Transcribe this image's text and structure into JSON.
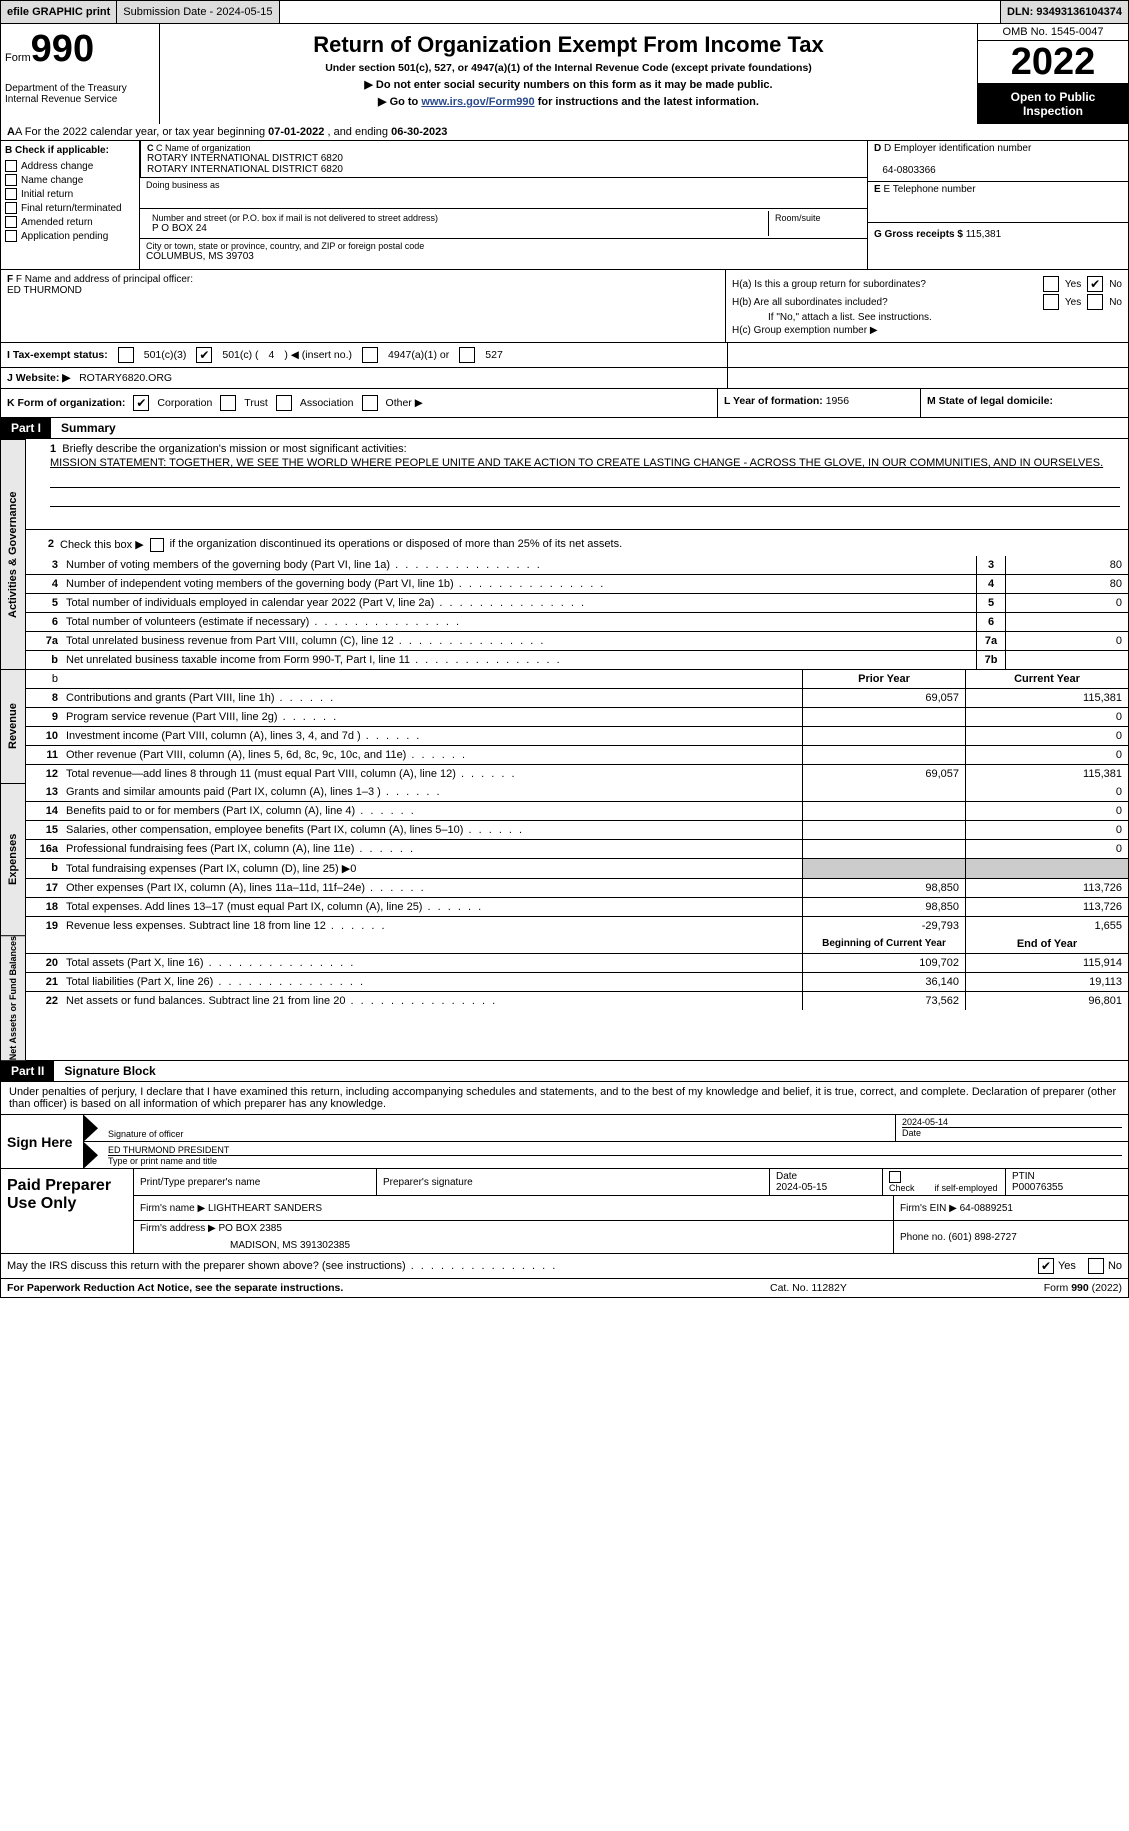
{
  "topbar": {
    "efile": "efile GRAPHIC print",
    "submission": "Submission Date - 2024-05-15",
    "dln": "DLN: 93493136104374"
  },
  "header": {
    "form_label": "Form",
    "form_number": "990",
    "title": "Return of Organization Exempt From Income Tax",
    "under": "Under section 501(c), 527, or 4947(a)(1) of the Internal Revenue Code (except private foundations)",
    "ssn": "▶ Do not enter social security numbers on this form as it may be made public.",
    "goto_pre": "▶ Go to ",
    "goto_link": "www.irs.gov/Form990",
    "goto_post": " for instructions and the latest information.",
    "dept": "Department of the Treasury\nInternal Revenue Service",
    "omb": "OMB No. 1545-0047",
    "year": "2022",
    "inspection": "Open to Public Inspection"
  },
  "row_a": {
    "pre": "A For the 2022 calendar year, or tax year beginning ",
    "begin": "07-01-2022",
    "mid": " , and ending ",
    "end": "06-30-2023"
  },
  "section_b": {
    "label": "B Check if applicable:",
    "items": [
      "Address change",
      "Name change",
      "Initial return",
      "Final return/terminated",
      "Amended return",
      "Application pending"
    ]
  },
  "section_c": {
    "name_lbl": "C Name of organization",
    "name1": "ROTARY INTERNATIONAL DISTRICT 6820",
    "name2": "ROTARY INTERNATIONAL DISTRICT 6820",
    "dba_lbl": "Doing business as",
    "street_lbl": "Number and street (or P.O. box if mail is not delivered to street address)",
    "room_lbl": "Room/suite",
    "street": "P O BOX 24",
    "city_lbl": "City or town, state or province, country, and ZIP or foreign postal code",
    "city": "COLUMBUS, MS  39703"
  },
  "section_de": {
    "ein_lbl": "D Employer identification number",
    "ein": "64-0803366",
    "phone_lbl": "E Telephone number",
    "gross_lbl": "G Gross receipts $",
    "gross": "115,381"
  },
  "section_f": {
    "lbl": "F Name and address of principal officer:",
    "name": "ED THURMOND"
  },
  "section_h": {
    "a": "H(a)  Is this a group return for subordinates?",
    "b": "H(b)  Are all subordinates included?",
    "ifno": "If \"No,\" attach a list. See instructions.",
    "c": "H(c)  Group exemption number ▶",
    "yes": "Yes",
    "no": "No"
  },
  "row_i": {
    "lbl": "I   Tax-exempt status:",
    "o1": "501(c)(3)",
    "o2_a": "501(c) (",
    "o2_n": "4",
    "o2_b": ") ◀ (insert no.)",
    "o3": "4947(a)(1) or",
    "o4": "527"
  },
  "row_j": {
    "lbl": "J   Website: ▶",
    "val": "ROTARY6820.ORG"
  },
  "row_k": {
    "lbl": "K Form of organization:",
    "o1": "Corporation",
    "o2": "Trust",
    "o3": "Association",
    "o4": "Other ▶",
    "l_lbl": "L Year of formation:",
    "l_val": "1956",
    "m_lbl": "M State of legal domicile:",
    "m_val": ""
  },
  "partI": {
    "tag": "Part I",
    "title": "Summary",
    "sideA": "Activities & Governance",
    "sideR": "Revenue",
    "sideE": "Expenses",
    "sideN": "Net Assets or Fund Balances",
    "l1_lbl": "Briefly describe the organization's mission or most significant activities:",
    "l1_val": "MISSION STATEMENT: TOGETHER, WE SEE THE WORLD WHERE PEOPLE UNITE AND TAKE ACTION TO CREATE LASTING CHANGE - ACROSS THE GLOVE, IN OUR COMMUNITIES, AND IN OURSELVES.",
    "l2_pre": "Check this box ▶",
    "l2_post": "if the organization discontinued its operations or disposed of more than 25% of its net assets.",
    "lines_act": [
      {
        "n": "3",
        "d": "Number of voting members of the governing body (Part VI, line 1a)",
        "box": "3",
        "v": "80"
      },
      {
        "n": "4",
        "d": "Number of independent voting members of the governing body (Part VI, line 1b)",
        "box": "4",
        "v": "80"
      },
      {
        "n": "5",
        "d": "Total number of individuals employed in calendar year 2022 (Part V, line 2a)",
        "box": "5",
        "v": "0"
      },
      {
        "n": "6",
        "d": "Total number of volunteers (estimate if necessary)",
        "box": "6",
        "v": ""
      },
      {
        "n": "7a",
        "d": "Total unrelated business revenue from Part VIII, column (C), line 12",
        "box": "7a",
        "v": "0"
      },
      {
        "n": "b",
        "d": "Net unrelated business taxable income from Form 990-T, Part I, line 11",
        "box": "7b",
        "v": ""
      }
    ],
    "hdr": {
      "prior": "Prior Year",
      "curr": "Current Year"
    },
    "lines_rev": [
      {
        "n": "8",
        "d": "Contributions and grants (Part VIII, line 1h)",
        "p": "69,057",
        "c": "115,381"
      },
      {
        "n": "9",
        "d": "Program service revenue (Part VIII, line 2g)",
        "p": "",
        "c": "0"
      },
      {
        "n": "10",
        "d": "Investment income (Part VIII, column (A), lines 3, 4, and 7d )",
        "p": "",
        "c": "0"
      },
      {
        "n": "11",
        "d": "Other revenue (Part VIII, column (A), lines 5, 6d, 8c, 9c, 10c, and 11e)",
        "p": "",
        "c": "0"
      },
      {
        "n": "12",
        "d": "Total revenue—add lines 8 through 11 (must equal Part VIII, column (A), line 12)",
        "p": "69,057",
        "c": "115,381"
      }
    ],
    "lines_exp": [
      {
        "n": "13",
        "d": "Grants and similar amounts paid (Part IX, column (A), lines 1–3 )",
        "p": "",
        "c": "0"
      },
      {
        "n": "14",
        "d": "Benefits paid to or for members (Part IX, column (A), line 4)",
        "p": "",
        "c": "0"
      },
      {
        "n": "15",
        "d": "Salaries, other compensation, employee benefits (Part IX, column (A), lines 5–10)",
        "p": "",
        "c": "0"
      },
      {
        "n": "16a",
        "d": "Professional fundraising fees (Part IX, column (A), line 11e)",
        "p": "",
        "c": "0"
      },
      {
        "n": "b",
        "d": "Total fundraising expenses (Part IX, column (D), line 25) ▶0",
        "p": "GRAY",
        "c": "GRAY"
      },
      {
        "n": "17",
        "d": "Other expenses (Part IX, column (A), lines 11a–11d, 11f–24e)",
        "p": "98,850",
        "c": "113,726"
      },
      {
        "n": "18",
        "d": "Total expenses. Add lines 13–17 (must equal Part IX, column (A), line 25)",
        "p": "98,850",
        "c": "113,726"
      },
      {
        "n": "19",
        "d": "Revenue less expenses. Subtract line 18 from line 12",
        "p": "-29,793",
        "c": "1,655"
      }
    ],
    "hdr2": {
      "prior": "Beginning of Current Year",
      "curr": "End of Year"
    },
    "lines_net": [
      {
        "n": "20",
        "d": "Total assets (Part X, line 16)",
        "p": "109,702",
        "c": "115,914"
      },
      {
        "n": "21",
        "d": "Total liabilities (Part X, line 26)",
        "p": "36,140",
        "c": "19,113"
      },
      {
        "n": "22",
        "d": "Net assets or fund balances. Subtract line 21 from line 20",
        "p": "73,562",
        "c": "96,801"
      }
    ]
  },
  "partII": {
    "tag": "Part II",
    "title": "Signature Block",
    "decl": "Under penalties of perjury, I declare that I have examined this return, including accompanying schedules and statements, and to the best of my knowledge and belief, it is true, correct, and complete. Declaration of preparer (other than officer) is based on all information of which preparer has any knowledge.",
    "sign_here": "Sign Here",
    "sig_officer": "Signature of officer",
    "sig_date_lbl": "Date",
    "sig_date": "2024-05-14",
    "sig_name": "ED THURMOND  PRESIDENT",
    "sig_name_lbl": "Type or print name and title",
    "paid": "Paid Preparer Use Only",
    "pp_name_lbl": "Print/Type preparer's name",
    "pp_sig_lbl": "Preparer's signature",
    "pp_date_lbl": "Date",
    "pp_date": "2024-05-15",
    "pp_check_lbl": "Check        if self-employed",
    "pp_ptin_lbl": "PTIN",
    "pp_ptin": "P00076355",
    "firm_name_lbl": "Firm's name    ▶",
    "firm_name": "LIGHTHEART SANDERS",
    "firm_ein_lbl": "Firm's EIN ▶",
    "firm_ein": "64-0889251",
    "firm_addr_lbl": "Firm's address ▶",
    "firm_addr1": "PO BOX 2385",
    "firm_addr2": "MADISON, MS  391302385",
    "firm_phone_lbl": "Phone no.",
    "firm_phone": "(601) 898-2727",
    "irs_q": "May the IRS discuss this return with the preparer shown above? (see instructions)",
    "yes": "Yes",
    "no": "No"
  },
  "footer": {
    "left": "For Paperwork Reduction Act Notice, see the separate instructions.",
    "center": "Cat. No. 11282Y",
    "right": "Form 990 (2022)"
  },
  "colors": {
    "header_gray": "#dddddd",
    "side_gray": "#e8e8e8",
    "cell_gray": "#cccccc"
  }
}
